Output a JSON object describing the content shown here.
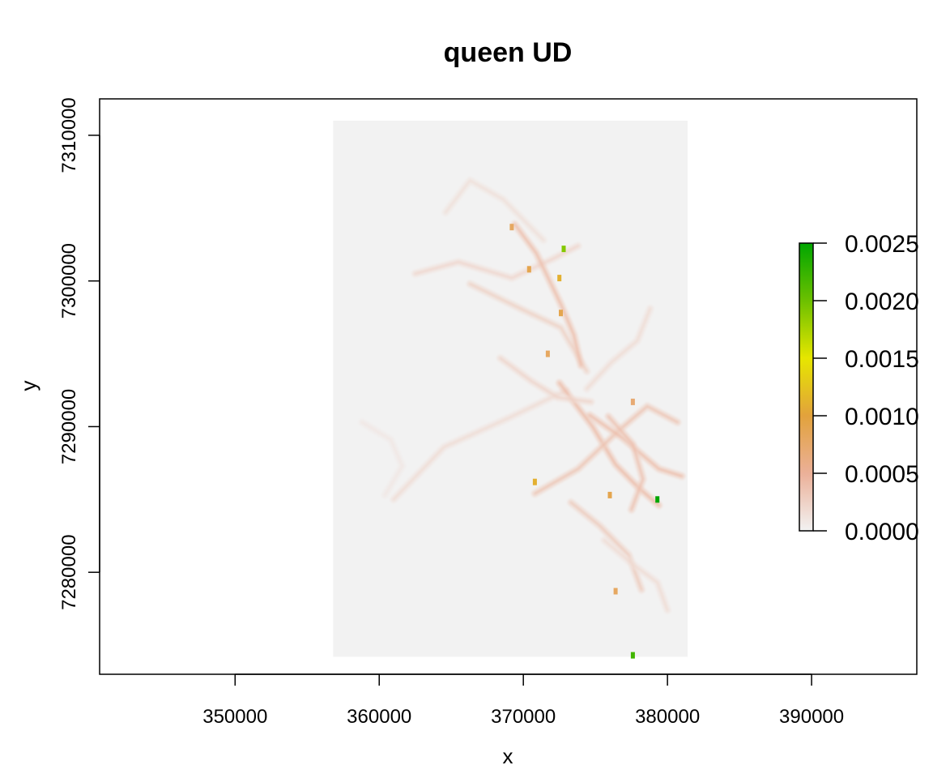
{
  "chart_data": {
    "type": "heatmap",
    "title": "queen UD",
    "xlabel": "x",
    "ylabel": "y",
    "xlim": [
      340600,
      397300
    ],
    "ylim": [
      7273000,
      7312500
    ],
    "x_ticks": [
      350000,
      360000,
      370000,
      380000,
      390000
    ],
    "y_ticks": [
      7280000,
      7290000,
      7300000,
      7310000
    ],
    "x_tick_labels": [
      "350000",
      "360000",
      "370000",
      "380000",
      "390000"
    ],
    "y_tick_labels": [
      "7280000",
      "7290000",
      "7300000",
      "7310000"
    ],
    "raster_extent": {
      "x": [
        356800,
        381400
      ],
      "y": [
        7274200,
        7311000
      ]
    },
    "raster_background_color": "#f2f2f2",
    "legend": {
      "placement": "right",
      "range": [
        0,
        0.0025
      ],
      "ticks": [
        0,
        0.0005,
        0.001,
        0.0015,
        0.002,
        0.0025
      ],
      "tick_labels": [
        "0.0000",
        "0.0005",
        "0.0010",
        "0.0015",
        "0.0020",
        "0.0025"
      ],
      "color_stops": [
        {
          "value": 0.0,
          "color": "#f2f2f2"
        },
        {
          "value": 0.0005,
          "color": "#ebb098"
        },
        {
          "value": 0.001,
          "color": "#e2a23c"
        },
        {
          "value": 0.0015,
          "color": "#e6e600"
        },
        {
          "value": 0.002,
          "color": "#6cc000"
        },
        {
          "value": 0.0025,
          "color": "#00a600"
        }
      ]
    },
    "track_segments": [
      {
        "points": [
          [
            361000,
            7285000
          ],
          [
            364500,
            7288600
          ],
          [
            369000,
            7290600
          ],
          [
            373000,
            7292500
          ]
        ],
        "value": 0.00012
      },
      {
        "points": [
          [
            366300,
            7299800
          ],
          [
            369800,
            7298100
          ],
          [
            372600,
            7296800
          ],
          [
            374400,
            7293800
          ]
        ],
        "value": 0.00018
      },
      {
        "points": [
          [
            362500,
            7300500
          ],
          [
            365500,
            7301300
          ],
          [
            369200,
            7300200
          ],
          [
            372000,
            7301500
          ],
          [
            373800,
            7302400
          ]
        ],
        "value": 0.00015
      },
      {
        "points": [
          [
            364600,
            7304700
          ],
          [
            366300,
            7306900
          ],
          [
            368600,
            7305600
          ],
          [
            371400,
            7302800
          ]
        ],
        "value": 0.0001
      },
      {
        "points": [
          [
            369400,
            7303900
          ],
          [
            370900,
            7301900
          ],
          [
            372600,
            7298400
          ],
          [
            373500,
            7296300
          ],
          [
            374000,
            7294200
          ]
        ],
        "value": 0.00028
      },
      {
        "points": [
          [
            372500,
            7293000
          ],
          [
            374800,
            7290000
          ],
          [
            376400,
            7287400
          ],
          [
            378000,
            7285800
          ],
          [
            379400,
            7284600
          ]
        ],
        "value": 0.0003
      },
      {
        "points": [
          [
            370800,
            7285400
          ],
          [
            373800,
            7287100
          ],
          [
            376700,
            7289800
          ],
          [
            378600,
            7291400
          ],
          [
            380700,
            7290300
          ]
        ],
        "value": 0.00025
      },
      {
        "points": [
          [
            373300,
            7284800
          ],
          [
            375300,
            7283200
          ],
          [
            377300,
            7281200
          ],
          [
            378200,
            7278800
          ]
        ],
        "value": 0.00022
      },
      {
        "points": [
          [
            374400,
            7292600
          ],
          [
            376100,
            7294400
          ],
          [
            377900,
            7295900
          ],
          [
            378800,
            7298100
          ]
        ],
        "value": 0.00012
      },
      {
        "points": [
          [
            374600,
            7290800
          ],
          [
            376900,
            7289200
          ],
          [
            379400,
            7287100
          ],
          [
            381000,
            7286600
          ]
        ],
        "value": 0.00028
      },
      {
        "points": [
          [
            375600,
            7282200
          ],
          [
            377400,
            7280700
          ],
          [
            379300,
            7279300
          ],
          [
            380000,
            7277400
          ]
        ],
        "value": 0.00012
      },
      {
        "points": [
          [
            358800,
            7290300
          ],
          [
            360800,
            7289100
          ],
          [
            361600,
            7287300
          ],
          [
            360400,
            7285300
          ]
        ],
        "value": 6e-05
      },
      {
        "points": [
          [
            368400,
            7294700
          ],
          [
            370600,
            7293100
          ],
          [
            372400,
            7292000
          ],
          [
            374700,
            7291700
          ]
        ],
        "value": 0.00016
      },
      {
        "points": [
          [
            375900,
            7290700
          ],
          [
            377600,
            7288800
          ],
          [
            378300,
            7286400
          ],
          [
            377500,
            7284300
          ]
        ],
        "value": 0.00026
      }
    ],
    "hotspots": [
      {
        "x": 372800,
        "y": 7302200,
        "value": 0.0019
      },
      {
        "x": 372500,
        "y": 7300200,
        "value": 0.0011
      },
      {
        "x": 370400,
        "y": 7300800,
        "value": 0.0009
      },
      {
        "x": 369200,
        "y": 7303700,
        "value": 0.0008
      },
      {
        "x": 372600,
        "y": 7297800,
        "value": 0.0009
      },
      {
        "x": 371700,
        "y": 7295000,
        "value": 0.0008
      },
      {
        "x": 377600,
        "y": 7291700,
        "value": 0.0007
      },
      {
        "x": 376000,
        "y": 7285300,
        "value": 0.0009
      },
      {
        "x": 379300,
        "y": 7285000,
        "value": 0.0025
      },
      {
        "x": 370800,
        "y": 7286200,
        "value": 0.0011
      },
      {
        "x": 377600,
        "y": 7274300,
        "value": 0.0022
      },
      {
        "x": 376400,
        "y": 7278700,
        "value": 0.0008
      }
    ]
  }
}
